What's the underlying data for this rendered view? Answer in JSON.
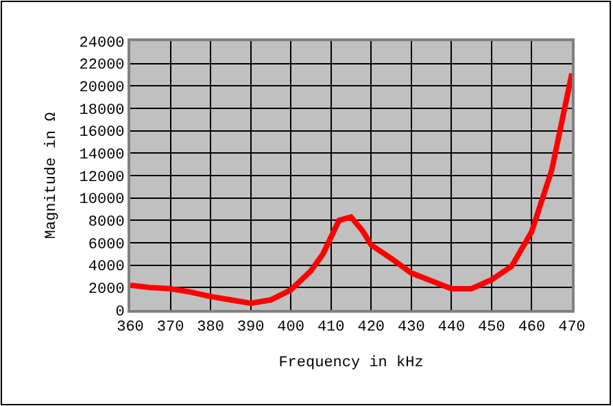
{
  "chart_data": {
    "type": "line",
    "xlabel": "Frequency in kHz",
    "ylabel": "Magnitude in Ω",
    "x": [
      360,
      365,
      370,
      375,
      380,
      385,
      390,
      395,
      400,
      405,
      408,
      410,
      412,
      415,
      418,
      420,
      425,
      430,
      435,
      440,
      445,
      450,
      455,
      460,
      465,
      470
    ],
    "series": [
      {
        "color": "#ff0000",
        "values": [
          2200,
          2000,
          1900,
          1600,
          1200,
          900,
          600,
          900,
          1800,
          3500,
          5000,
          6500,
          8000,
          8300,
          7000,
          5800,
          4600,
          3300,
          2600,
          1900,
          1900,
          2700,
          3900,
          7000,
          12500,
          21100
        ]
      }
    ],
    "xlim": [
      360,
      470
    ],
    "xticks": [
      360,
      370,
      380,
      390,
      400,
      410,
      420,
      430,
      440,
      450,
      460,
      470
    ],
    "ylim": [
      0,
      24000
    ],
    "yticks": [
      0,
      2000,
      4000,
      6000,
      8000,
      10000,
      12000,
      14000,
      16000,
      18000,
      20000,
      22000,
      24000
    ],
    "grid": true,
    "marker": "none",
    "line_style": "solid"
  }
}
